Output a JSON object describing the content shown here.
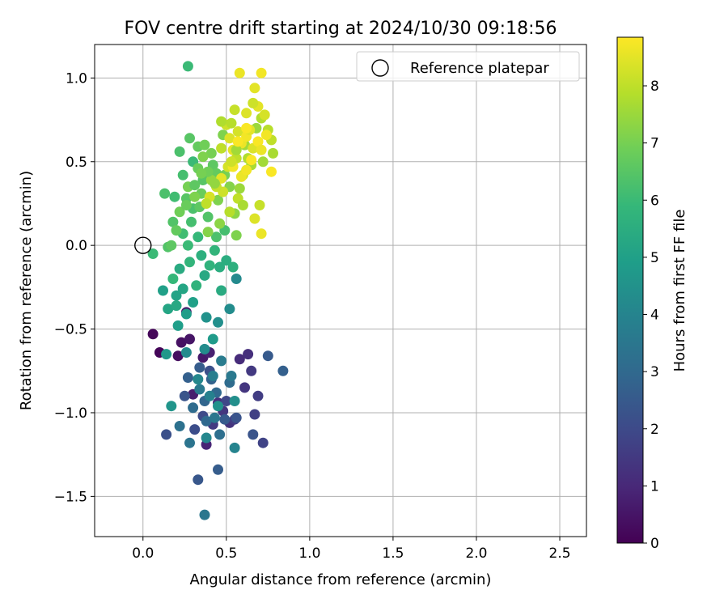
{
  "chart_data": {
    "type": "scatter",
    "title": "FOV centre drift starting at 2024/10/30 09:18:56",
    "xlabel": "Angular distance from reference (arcmin)",
    "ylabel": "Rotation from reference (arcmin)",
    "xlim": [
      -0.29,
      2.66
    ],
    "ylim": [
      -1.74,
      1.2
    ],
    "xticks": [
      0.0,
      0.5,
      1.0,
      1.5,
      2.0,
      2.5
    ],
    "xtick_labels": [
      "0.0",
      "0.5",
      "1.0",
      "1.5",
      "2.0",
      "2.5"
    ],
    "yticks": [
      1.0,
      0.5,
      0.0,
      -0.5,
      -1.0,
      -1.5
    ],
    "ytick_labels": [
      "1.0",
      "0.5",
      "0.0",
      "−0.5",
      "−1.0",
      "−1.5"
    ],
    "grid": true,
    "legend": {
      "placement": "top-right",
      "label": "Reference platepar"
    },
    "reference_point": {
      "x": 0.0,
      "y": 0.0
    },
    "colorbar": {
      "label": "Hours from first FF file",
      "min": 0,
      "max": 8.85,
      "ticks": [
        0,
        1,
        2,
        3,
        4,
        5,
        6,
        7,
        8
      ],
      "tick_labels": [
        "0",
        "1",
        "2",
        "3",
        "4",
        "5",
        "6",
        "7",
        "8"
      ],
      "colormap": "viridis",
      "colormap_stops": [
        "#440154",
        "#482878",
        "#3e4989",
        "#31688e",
        "#26828e",
        "#1f9e89",
        "#35b779",
        "#6ece58",
        "#b5de2b",
        "#fde725"
      ]
    },
    "points": [
      [
        0.06,
        -0.53,
        0.15
      ],
      [
        0.1,
        -0.64,
        0.1
      ],
      [
        0.21,
        -0.66,
        0.3
      ],
      [
        0.23,
        -0.58,
        0.4
      ],
      [
        0.28,
        -0.56,
        0.5
      ],
      [
        0.36,
        -0.67,
        0.6
      ],
      [
        0.4,
        -0.64,
        0.8
      ],
      [
        0.3,
        -0.89,
        0.7
      ],
      [
        0.38,
        -1.19,
        0.9
      ],
      [
        0.26,
        -0.4,
        0.6
      ],
      [
        0.45,
        -0.94,
        1.2
      ],
      [
        0.48,
        -0.99,
        1.4
      ],
      [
        0.52,
        -1.06,
        1.3
      ],
      [
        0.58,
        -0.68,
        1.1
      ],
      [
        0.63,
        -0.65,
        1.2
      ],
      [
        0.65,
        -0.75,
        1.5
      ],
      [
        0.55,
        -1.04,
        1.6
      ],
      [
        0.67,
        -1.01,
        1.7
      ],
      [
        0.72,
        -1.18,
        1.8
      ],
      [
        0.69,
        -0.9,
        1.6
      ],
      [
        0.61,
        -0.85,
        1.4
      ],
      [
        0.42,
        -1.07,
        1.5
      ],
      [
        0.5,
        -0.93,
        1.9
      ],
      [
        0.36,
        -1.02,
        2.0
      ],
      [
        0.31,
        -1.1,
        2.1
      ],
      [
        0.4,
        -0.75,
        2.2
      ],
      [
        0.14,
        -1.13,
        2.2
      ],
      [
        0.25,
        -0.9,
        2.3
      ],
      [
        0.33,
        -1.4,
        2.4
      ],
      [
        0.45,
        -1.34,
        2.6
      ],
      [
        0.49,
        -1.04,
        2.5
      ],
      [
        0.56,
        -1.03,
        2.3
      ],
      [
        0.66,
        -1.13,
        2.3
      ],
      [
        0.75,
        -0.66,
        2.5
      ],
      [
        0.84,
        -0.75,
        2.7
      ],
      [
        0.34,
        -0.73,
        2.6
      ],
      [
        0.27,
        -0.79,
        2.7
      ],
      [
        0.41,
        -0.8,
        2.8
      ],
      [
        0.37,
        -0.93,
        2.9
      ],
      [
        0.44,
        -0.88,
        3.0
      ],
      [
        0.3,
        -0.97,
        3.1
      ],
      [
        0.38,
        -1.05,
        3.0
      ],
      [
        0.52,
        -0.82,
        3.1
      ],
      [
        0.46,
        -1.13,
        3.2
      ],
      [
        0.22,
        -1.08,
        3.3
      ],
      [
        0.28,
        -1.18,
        3.4
      ],
      [
        0.37,
        -1.61,
        3.5
      ],
      [
        0.43,
        -1.03,
        3.5
      ],
      [
        0.53,
        -0.78,
        3.6
      ],
      [
        0.47,
        -0.69,
        3.7
      ],
      [
        0.34,
        -0.86,
        3.6
      ],
      [
        0.42,
        -0.78,
        3.8
      ],
      [
        0.4,
        -0.9,
        3.9
      ],
      [
        0.55,
        -1.21,
        4.0
      ],
      [
        0.38,
        -1.15,
        4.1
      ],
      [
        0.26,
        -0.64,
        4.2
      ],
      [
        0.37,
        -0.62,
        4.3
      ],
      [
        0.33,
        -0.8,
        4.1
      ],
      [
        0.55,
        -0.93,
        4.4
      ],
      [
        0.45,
        -0.96,
        4.5
      ],
      [
        0.17,
        -0.96,
        4.6
      ],
      [
        0.14,
        -0.65,
        4.7
      ],
      [
        0.38,
        -0.43,
        4.5
      ],
      [
        0.45,
        -0.46,
        4.4
      ],
      [
        0.52,
        -0.38,
        4.3
      ],
      [
        0.56,
        -0.2,
        4.2
      ],
      [
        0.42,
        -0.56,
        4.8
      ],
      [
        0.21,
        -0.48,
        4.9
      ],
      [
        0.12,
        -0.27,
        5.0
      ],
      [
        0.2,
        -0.3,
        5.1
      ],
      [
        0.24,
        -0.26,
        5.2
      ],
      [
        0.3,
        -0.34,
        5.0
      ],
      [
        0.26,
        -0.41,
        4.9
      ],
      [
        0.37,
        -0.18,
        5.3
      ],
      [
        0.47,
        -0.27,
        5.4
      ],
      [
        0.46,
        -0.13,
        5.5
      ],
      [
        0.5,
        -0.09,
        5.5
      ],
      [
        0.54,
        -0.13,
        5.6
      ],
      [
        0.32,
        -0.24,
        5.7
      ],
      [
        0.35,
        -0.06,
        5.6
      ],
      [
        0.28,
        -0.1,
        5.8
      ],
      [
        0.18,
        -0.2,
        5.9
      ],
      [
        0.15,
        -0.38,
        5.2
      ],
      [
        0.2,
        -0.36,
        5.3
      ],
      [
        0.22,
        -0.14,
        5.4
      ],
      [
        0.4,
        -0.12,
        5.7
      ],
      [
        0.43,
        -0.03,
        5.8
      ],
      [
        0.33,
        0.05,
        5.9
      ],
      [
        0.27,
        0.0,
        6.0
      ],
      [
        0.24,
        0.07,
        6.1
      ],
      [
        0.29,
        0.14,
        6.2
      ],
      [
        0.3,
        0.22,
        6.3
      ],
      [
        0.18,
        0.14,
        6.4
      ],
      [
        0.26,
        0.28,
        6.5
      ],
      [
        0.34,
        0.23,
        6.6
      ],
      [
        0.39,
        0.17,
        6.4
      ],
      [
        0.44,
        0.05,
        6.3
      ],
      [
        0.49,
        0.09,
        6.2
      ],
      [
        0.06,
        -0.05,
        6.0
      ],
      [
        0.15,
        -0.01,
        6.4
      ],
      [
        0.13,
        0.31,
        6.3
      ],
      [
        0.19,
        0.29,
        6.1
      ],
      [
        0.24,
        0.42,
        6.2
      ],
      [
        0.3,
        0.5,
        6.0
      ],
      [
        0.36,
        0.39,
        6.5
      ],
      [
        0.42,
        0.48,
        6.6
      ],
      [
        0.44,
        0.43,
        6.7
      ],
      [
        0.35,
        0.31,
        6.8
      ],
      [
        0.27,
        1.07,
        6.0
      ],
      [
        0.22,
        0.56,
        6.3
      ],
      [
        0.28,
        0.64,
        6.5
      ],
      [
        0.33,
        0.59,
        6.7
      ],
      [
        0.37,
        0.6,
        6.9
      ],
      [
        0.41,
        0.55,
        7.0
      ],
      [
        0.48,
        0.66,
        7.1
      ],
      [
        0.49,
        0.42,
        7.0
      ],
      [
        0.52,
        0.35,
        7.2
      ],
      [
        0.55,
        0.19,
        7.3
      ],
      [
        0.45,
        0.27,
        7.1
      ],
      [
        0.39,
        0.08,
        7.2
      ],
      [
        0.31,
        0.29,
        7.1
      ],
      [
        0.22,
        0.2,
        6.9
      ],
      [
        0.27,
        0.35,
        7.0
      ],
      [
        0.33,
        0.46,
        6.8
      ],
      [
        0.36,
        0.53,
        7.1
      ],
      [
        0.41,
        0.39,
        7.4
      ],
      [
        0.46,
        0.13,
        7.3
      ],
      [
        0.56,
        0.06,
        7.1
      ],
      [
        0.58,
        0.34,
        7.5
      ],
      [
        0.61,
        0.6,
        7.6
      ],
      [
        0.65,
        0.48,
        7.7
      ],
      [
        0.68,
        0.7,
        7.5
      ],
      [
        0.71,
        0.76,
        7.8
      ],
      [
        0.75,
        0.69,
        7.9
      ],
      [
        0.77,
        0.63,
        8.0
      ],
      [
        0.78,
        0.55,
        7.7
      ],
      [
        0.72,
        0.5,
        7.6
      ],
      [
        0.63,
        0.52,
        7.8
      ],
      [
        0.6,
        0.42,
        8.1
      ],
      [
        0.57,
        0.28,
        8.0
      ],
      [
        0.52,
        0.2,
        7.9
      ],
      [
        0.48,
        0.32,
        8.2
      ],
      [
        0.44,
        0.35,
        8.1
      ],
      [
        0.4,
        0.29,
        8.3
      ],
      [
        0.38,
        0.25,
        8.0
      ],
      [
        0.5,
        0.72,
        8.2
      ],
      [
        0.52,
        0.64,
        8.4
      ],
      [
        0.54,
        0.57,
        8.5
      ],
      [
        0.57,
        0.68,
        8.3
      ],
      [
        0.59,
        0.61,
        8.6
      ],
      [
        0.62,
        0.65,
        8.7
      ],
      [
        0.64,
        0.69,
        8.5
      ],
      [
        0.66,
        0.58,
        8.4
      ],
      [
        0.69,
        0.62,
        8.8
      ],
      [
        0.71,
        0.57,
        8.6
      ],
      [
        0.74,
        0.66,
        8.7
      ],
      [
        0.73,
        0.78,
        8.3
      ],
      [
        0.69,
        0.83,
        8.5
      ],
      [
        0.66,
        0.85,
        8.2
      ],
      [
        0.62,
        0.79,
        8.4
      ],
      [
        0.58,
        1.03,
        8.6
      ],
      [
        0.67,
        0.94,
        8.5
      ],
      [
        0.71,
        1.03,
        8.7
      ],
      [
        0.55,
        0.81,
        8.1
      ],
      [
        0.53,
        0.73,
        7.9
      ],
      [
        0.47,
        0.74,
        7.8
      ],
      [
        0.56,
        0.52,
        8.0
      ],
      [
        0.51,
        0.47,
        8.3
      ],
      [
        0.47,
        0.4,
        8.5
      ],
      [
        0.59,
        0.41,
        8.6
      ],
      [
        0.62,
        0.45,
        8.7
      ],
      [
        0.65,
        0.51,
        8.8
      ],
      [
        0.77,
        0.44,
        8.8
      ],
      [
        0.7,
        0.24,
        8.1
      ],
      [
        0.71,
        0.07,
        8.6
      ],
      [
        0.67,
        0.16,
        8.4
      ],
      [
        0.6,
        0.24,
        7.7
      ],
      [
        0.56,
        0.57,
        7.6
      ],
      [
        0.54,
        0.47,
        8.7
      ],
      [
        0.62,
        0.7,
        8.8
      ],
      [
        0.57,
        0.62,
        8.8
      ],
      [
        0.53,
        0.5,
        8.2
      ],
      [
        0.47,
        0.58,
        8.0
      ],
      [
        0.43,
        0.37,
        7.4
      ],
      [
        0.39,
        0.44,
        6.9
      ],
      [
        0.35,
        0.43,
        7.0
      ],
      [
        0.31,
        0.36,
        6.6
      ],
      [
        0.26,
        0.24,
        6.8
      ],
      [
        0.2,
        0.09,
        6.7
      ],
      [
        0.17,
        0.0,
        6.6
      ]
    ]
  }
}
